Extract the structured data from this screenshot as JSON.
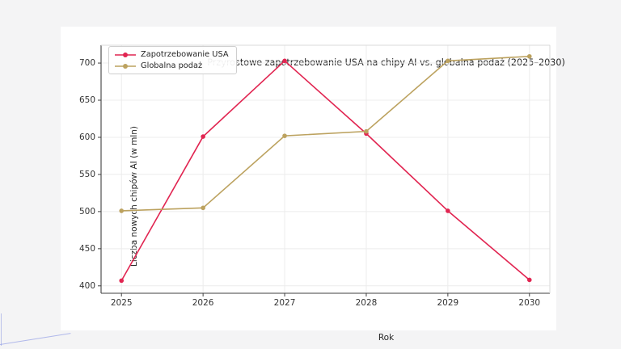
{
  "chart_data": {
    "type": "line",
    "title": "Przyrostowe zapotrzebowanie USA na chipy AI vs. globalna podaż (2025–2030)",
    "xlabel": "Rok",
    "ylabel": "Liczba nowych chipów AI (w mln)",
    "x": [
      2025,
      2026,
      2027,
      2028,
      2029,
      2030
    ],
    "xticklabels": [
      "2025",
      "2026",
      "2027",
      "2028",
      "2029",
      "2030"
    ],
    "yticks": [
      400,
      450,
      500,
      550,
      600,
      650,
      700
    ],
    "xlim": [
      2024.75,
      2030.25
    ],
    "ylim": [
      390,
      724
    ],
    "grid": true,
    "legend_position": "upper left",
    "series": [
      {
        "name": "Zapotrzebowanie USA",
        "color": "#e12551",
        "marker": "circle",
        "values": [
          407,
          601,
          703,
          605,
          501,
          408
        ]
      },
      {
        "name": "Globalna podaż",
        "color": "#bca25f",
        "marker": "circle",
        "values": [
          501,
          505,
          602,
          608,
          703,
          709
        ]
      }
    ]
  },
  "colors": {
    "grid": "#ececec",
    "spine_main": "#404040",
    "spine_light": "#d9d9d9",
    "text": "#262626",
    "figure_bg": "#ffffff",
    "page_bg": "#f4f4f5"
  }
}
